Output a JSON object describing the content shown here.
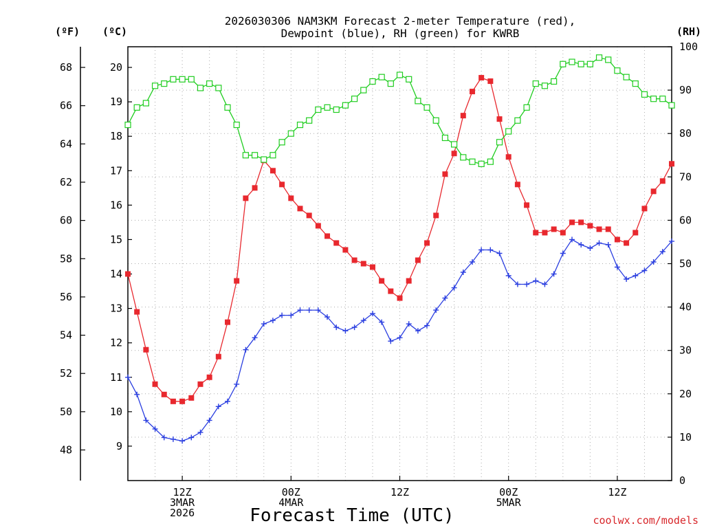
{
  "chart_data": {
    "type": "line",
    "title_line1": "2026030306 NAM3KM Forecast 2-meter Temperature (red),",
    "title_line2": "Dewpoint (blue), RH (green) for KWRB",
    "xlabel": "Forecast Time (UTC)",
    "credit": "coolwx.com/models",
    "units": {
      "fahrenheit": "(ºF)",
      "celsius": "(ºC)",
      "rh": "(RH)"
    },
    "x_hours_range": [
      0,
      60
    ],
    "x_ticks": [
      {
        "hour": 6,
        "lines": [
          "12Z",
          "3MAR",
          "2026"
        ]
      },
      {
        "hour": 18,
        "lines": [
          "00Z",
          "4MAR"
        ]
      },
      {
        "hour": 30,
        "lines": [
          "12Z"
        ]
      },
      {
        "hour": 42,
        "lines": [
          "00Z",
          "5MAR"
        ]
      },
      {
        "hour": 54,
        "lines": [
          "12Z"
        ]
      }
    ],
    "celsius_axis": {
      "range": [
        8.0,
        20.6
      ],
      "ticks": [
        "9",
        "10",
        "11",
        "12",
        "13",
        "14",
        "15",
        "16",
        "17",
        "18",
        "19",
        "20"
      ]
    },
    "fahrenheit_axis": {
      "range": [
        46.4,
        69.08
      ],
      "ticks": [
        "48",
        "50",
        "52",
        "54",
        "56",
        "58",
        "60",
        "62",
        "64",
        "66",
        "68"
      ]
    },
    "rh_axis": {
      "range": [
        0,
        100
      ],
      "ticks": [
        "0",
        "10",
        "20",
        "30",
        "40",
        "50",
        "60",
        "70",
        "80",
        "90",
        "100"
      ]
    },
    "grid": true,
    "colors": {
      "temperature": "#e8282e",
      "dewpoint": "#2a3ee0",
      "rh": "#1fcd1f",
      "credit": "#d8262a"
    },
    "series": [
      {
        "key": "temperature",
        "axis": "celsius",
        "values": [
          14.0,
          12.9,
          11.8,
          10.8,
          10.5,
          10.3,
          10.3,
          10.4,
          10.8,
          11.0,
          11.6,
          12.6,
          13.8,
          16.2,
          16.5,
          17.3,
          17.0,
          16.6,
          16.2,
          15.9,
          15.7,
          15.4,
          15.1,
          14.9,
          14.7,
          14.4,
          14.3,
          14.2,
          13.8,
          13.5,
          13.3,
          13.8,
          14.4,
          14.9,
          15.7,
          16.9,
          17.5,
          18.6,
          19.3,
          19.7,
          19.6,
          18.5,
          17.4,
          16.6,
          16.0,
          15.2,
          15.2,
          15.3,
          15.2,
          15.5,
          15.5,
          15.4,
          15.3,
          15.3,
          15.0,
          14.9,
          15.2,
          15.9,
          16.4,
          16.7,
          17.2
        ]
      },
      {
        "key": "dewpoint",
        "axis": "celsius",
        "values": [
          11.0,
          10.5,
          9.75,
          9.5,
          9.25,
          9.2,
          9.15,
          9.25,
          9.4,
          9.75,
          10.15,
          10.3,
          10.8,
          11.8,
          12.15,
          12.55,
          12.65,
          12.8,
          12.8,
          12.95,
          12.95,
          12.95,
          12.75,
          12.45,
          12.35,
          12.45,
          12.65,
          12.85,
          12.6,
          12.05,
          12.15,
          12.55,
          12.35,
          12.5,
          12.95,
          13.3,
          13.6,
          14.05,
          14.35,
          14.7,
          14.7,
          14.6,
          13.95,
          13.7,
          13.7,
          13.8,
          13.7,
          14.0,
          14.6,
          15.0,
          14.85,
          14.75,
          14.9,
          14.85,
          14.2,
          13.85,
          13.95,
          14.1,
          14.35,
          14.65,
          14.95
        ]
      },
      {
        "key": "rh",
        "axis": "rh",
        "values": [
          82,
          86,
          87,
          91,
          91.5,
          92.5,
          92.5,
          92.5,
          90.5,
          91.5,
          90.5,
          86,
          82,
          75,
          75,
          74,
          75,
          78,
          80,
          82,
          83,
          85.5,
          86,
          85.5,
          86.5,
          88,
          90,
          92,
          93,
          91.5,
          93.5,
          92.5,
          87.5,
          86,
          83,
          79,
          77.5,
          74.5,
          73.5,
          73,
          73.5,
          78,
          80.5,
          83,
          86,
          91.5,
          91,
          92,
          96,
          96.5,
          96,
          96,
          97.5,
          97,
          94.5,
          93,
          91.5,
          89,
          88,
          88,
          86.5
        ]
      }
    ]
  }
}
